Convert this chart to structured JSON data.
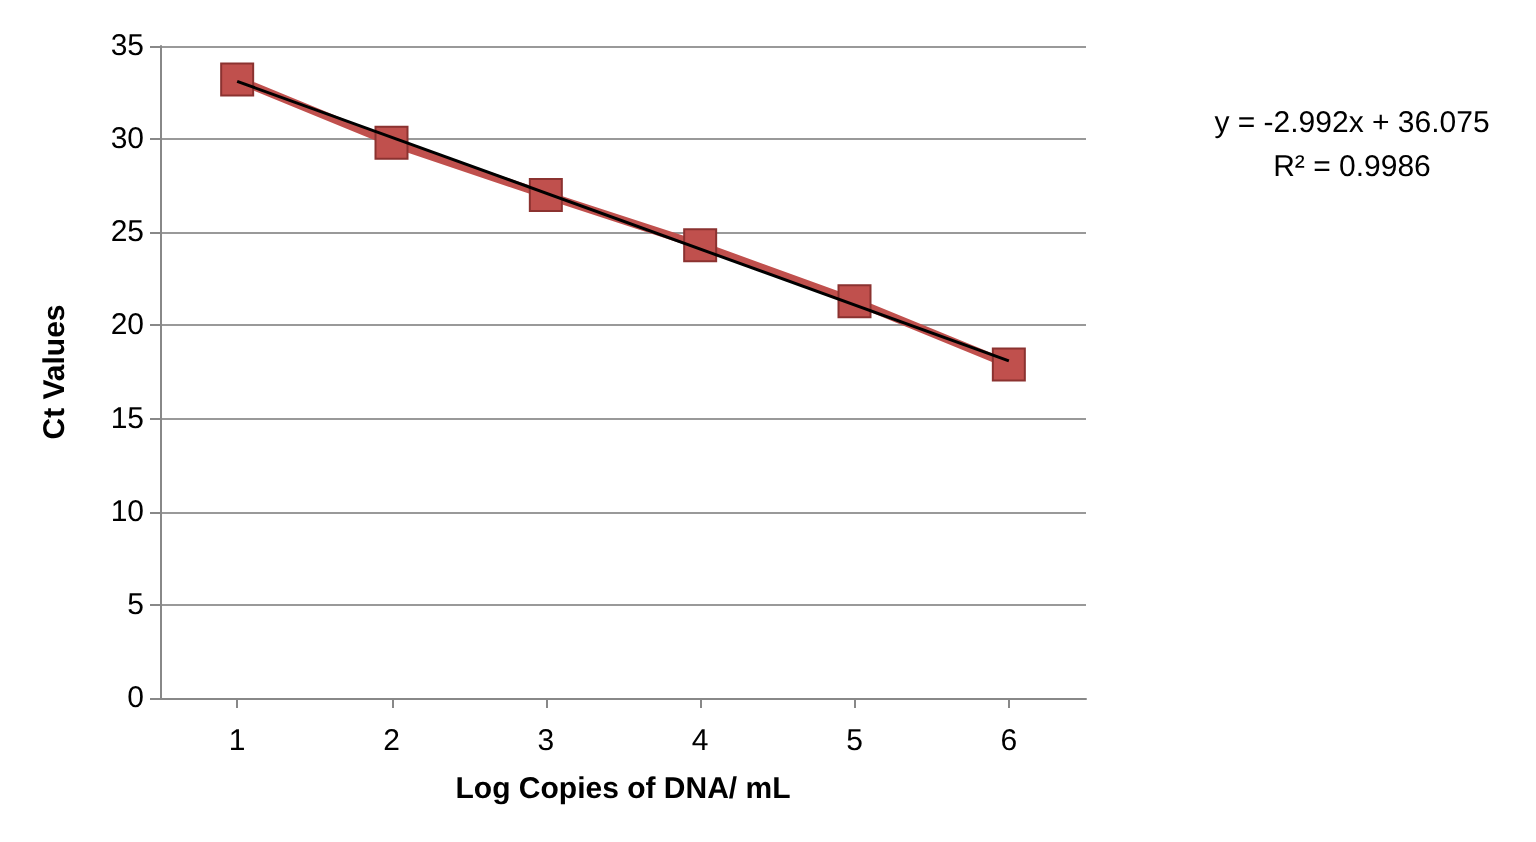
{
  "chart_data": {
    "type": "line",
    "xlabel": "Log Copies of DNA/ mL",
    "ylabel": "Ct Values",
    "x": [
      1,
      2,
      3,
      4,
      5,
      6
    ],
    "series": [
      {
        "color": "#c0504d",
        "values": [
          33.2,
          29.8,
          27.0,
          24.3,
          21.3,
          17.9
        ],
        "marker": "square"
      },
      {
        "color": "#000000",
        "x": [
          1,
          6
        ],
        "values": [
          33.1,
          18.1
        ],
        "marker": "none"
      }
    ],
    "xlim": [
      0.5,
      6.5
    ],
    "xticks": [
      1,
      2,
      3,
      4,
      5,
      6
    ],
    "ylim": [
      0,
      35
    ],
    "yticks": [
      0,
      5,
      10,
      15,
      20,
      25,
      30,
      35
    ],
    "grid": "y",
    "legend": false,
    "annotations": [
      "y = -2.992x + 36.075",
      "R² = 0.9986"
    ]
  }
}
